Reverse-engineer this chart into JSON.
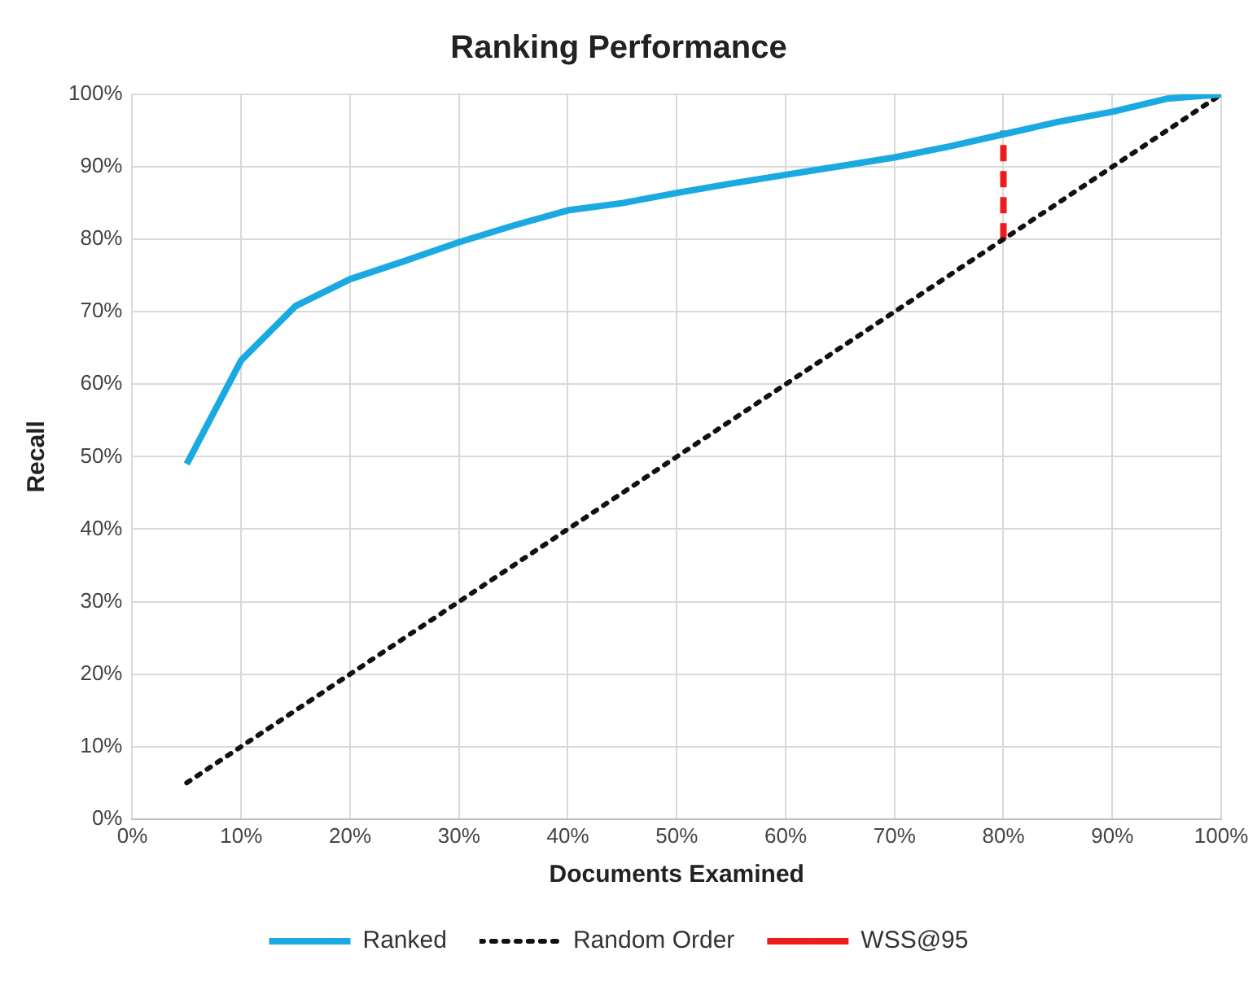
{
  "chart_data": {
    "type": "line",
    "title": "Ranking Performance",
    "xlabel": "Documents Examined",
    "ylabel": "Recall",
    "xlim": [
      0,
      100
    ],
    "ylim": [
      0,
      100
    ],
    "xticks": [
      {
        "value": 0,
        "label": "0%"
      },
      {
        "value": 10,
        "label": "10%"
      },
      {
        "value": 20,
        "label": "20%"
      },
      {
        "value": 30,
        "label": "30%"
      },
      {
        "value": 40,
        "label": "40%"
      },
      {
        "value": 50,
        "label": "50%"
      },
      {
        "value": 60,
        "label": "60%"
      },
      {
        "value": 70,
        "label": "70%"
      },
      {
        "value": 80,
        "label": "80%"
      },
      {
        "value": 90,
        "label": "90%"
      },
      {
        "value": 100,
        "label": "100%"
      }
    ],
    "yticks": [
      {
        "value": 0,
        "label": "0%"
      },
      {
        "value": 10,
        "label": "10%"
      },
      {
        "value": 20,
        "label": "20%"
      },
      {
        "value": 30,
        "label": "30%"
      },
      {
        "value": 40,
        "label": "40%"
      },
      {
        "value": 50,
        "label": "50%"
      },
      {
        "value": 60,
        "label": "60%"
      },
      {
        "value": 70,
        "label": "70%"
      },
      {
        "value": 80,
        "label": "80%"
      },
      {
        "value": 90,
        "label": "90%"
      },
      {
        "value": 100,
        "label": "100%"
      }
    ],
    "grid": true,
    "legend": "bottom",
    "marker": "none",
    "series": [
      {
        "name": "Ranked",
        "color": "#1aa9e0",
        "line_style": "solid",
        "x": [
          5,
          10,
          15,
          20,
          25,
          30,
          35,
          40,
          45,
          50,
          55,
          60,
          65,
          70,
          75,
          80,
          85,
          90,
          95,
          100
        ],
        "values": [
          49,
          63.3,
          70.8,
          74.5,
          77,
          79.6,
          81.9,
          84,
          85,
          86.4,
          87.7,
          88.9,
          90.1,
          91.3,
          92.8,
          94.5,
          96.2,
          97.6,
          99.4,
          100
        ]
      },
      {
        "name": "Random Order",
        "color": "#111111",
        "line_style": "dotted",
        "x": [
          5,
          100
        ],
        "values": [
          5,
          100
        ]
      },
      {
        "name": "WSS@95",
        "color": "#ee1c1c",
        "line_style": "dashed",
        "x": [
          80,
          80
        ],
        "values": [
          80,
          95
        ]
      }
    ]
  }
}
